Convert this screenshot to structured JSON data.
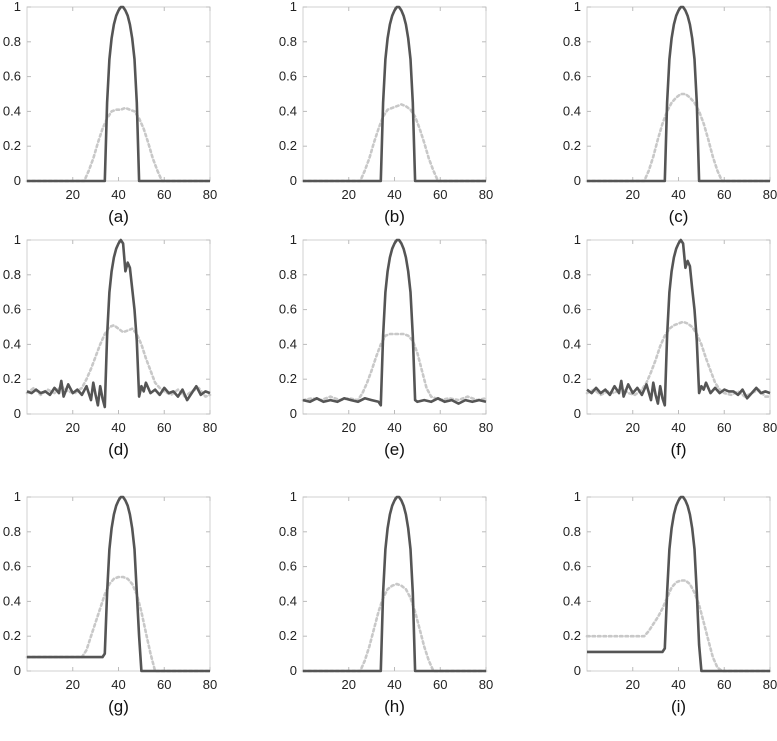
{
  "figure": {
    "xlim": [
      0,
      80
    ],
    "ylim": [
      0,
      1
    ],
    "xticks": [
      20,
      40,
      60,
      80
    ],
    "yticks": [
      0,
      0.2,
      0.4,
      0.6,
      0.8,
      1
    ],
    "colors": {
      "solid": "#555555",
      "dotted": "#c8c8c8",
      "axis": "#d2d2d2"
    }
  },
  "chart_data": [
    {
      "type": "line",
      "caption": "(a)",
      "xlim": [
        0,
        80
      ],
      "ylim": [
        0,
        1
      ],
      "series": [
        {
          "style": "solid",
          "x": [
            0,
            34,
            35,
            36,
            37,
            38,
            39,
            40,
            41,
            42,
            43,
            44,
            45,
            46,
            47,
            48,
            49,
            80
          ],
          "y": [
            0,
            0,
            0.45,
            0.7,
            0.82,
            0.9,
            0.95,
            0.98,
            1,
            1,
            0.98,
            0.95,
            0.9,
            0.82,
            0.7,
            0.45,
            0,
            0
          ]
        },
        {
          "style": "dotted",
          "x": [
            0,
            25,
            27,
            29,
            31,
            33,
            35,
            37,
            39,
            41,
            43,
            45,
            47,
            49,
            51,
            53,
            55,
            57,
            59,
            80
          ],
          "y": [
            0,
            0,
            0.06,
            0.13,
            0.22,
            0.3,
            0.36,
            0.4,
            0.41,
            0.41,
            0.42,
            0.41,
            0.4,
            0.36,
            0.3,
            0.22,
            0.13,
            0.06,
            0,
            0
          ]
        }
      ]
    },
    {
      "type": "line",
      "caption": "(b)",
      "xlim": [
        0,
        80
      ],
      "ylim": [
        0,
        1
      ],
      "series": [
        {
          "style": "solid",
          "x": [
            0,
            34,
            35,
            36,
            37,
            38,
            39,
            40,
            41,
            42,
            43,
            44,
            45,
            46,
            47,
            48,
            49,
            80
          ],
          "y": [
            0,
            0,
            0.45,
            0.7,
            0.82,
            0.9,
            0.95,
            0.98,
            1,
            1,
            0.98,
            0.95,
            0.9,
            0.82,
            0.7,
            0.45,
            0,
            0
          ]
        },
        {
          "style": "dotted",
          "x": [
            0,
            25,
            27,
            29,
            31,
            33,
            35,
            37,
            39,
            41,
            43,
            45,
            47,
            49,
            51,
            53,
            55,
            57,
            59,
            80
          ],
          "y": [
            0,
            0,
            0.06,
            0.13,
            0.22,
            0.3,
            0.37,
            0.41,
            0.42,
            0.43,
            0.44,
            0.43,
            0.41,
            0.37,
            0.3,
            0.22,
            0.13,
            0.06,
            0,
            0
          ]
        }
      ]
    },
    {
      "type": "line",
      "caption": "(c)",
      "xlim": [
        0,
        80
      ],
      "ylim": [
        0,
        1
      ],
      "series": [
        {
          "style": "solid",
          "x": [
            0,
            34,
            35,
            36,
            37,
            38,
            39,
            40,
            41,
            42,
            43,
            44,
            45,
            46,
            47,
            48,
            49,
            80
          ],
          "y": [
            0,
            0,
            0.45,
            0.7,
            0.82,
            0.9,
            0.95,
            0.98,
            1,
            1,
            0.98,
            0.95,
            0.9,
            0.82,
            0.7,
            0.45,
            0,
            0
          ]
        },
        {
          "style": "dotted",
          "x": [
            0,
            25,
            27,
            29,
            31,
            33,
            35,
            37,
            39,
            41,
            43,
            45,
            47,
            49,
            51,
            53,
            55,
            57,
            59,
            80
          ],
          "y": [
            0,
            0,
            0.06,
            0.14,
            0.24,
            0.33,
            0.4,
            0.45,
            0.48,
            0.5,
            0.5,
            0.48,
            0.45,
            0.4,
            0.33,
            0.24,
            0.14,
            0.06,
            0,
            0
          ]
        }
      ]
    },
    {
      "type": "line",
      "caption": "(d)",
      "xlim": [
        0,
        80
      ],
      "ylim": [
        0,
        1
      ],
      "series": [
        {
          "style": "solid",
          "x": [
            0,
            2,
            4,
            6,
            8,
            10,
            12,
            14,
            15,
            16,
            18,
            20,
            22,
            24,
            26,
            28,
            29,
            30,
            31,
            32,
            33,
            34,
            35,
            36,
            37,
            38,
            39,
            40,
            41,
            42,
            43,
            44,
            45,
            46,
            47,
            48,
            49,
            50,
            51,
            52,
            54,
            56,
            58,
            60,
            62,
            64,
            66,
            68,
            70,
            72,
            74,
            76,
            78,
            80
          ],
          "y": [
            0.13,
            0.12,
            0.14,
            0.12,
            0.13,
            0.11,
            0.15,
            0.12,
            0.19,
            0.1,
            0.17,
            0.12,
            0.14,
            0.11,
            0.16,
            0.08,
            0.18,
            0.11,
            0.05,
            0.16,
            0.09,
            0.04,
            0.45,
            0.7,
            0.82,
            0.9,
            0.95,
            0.98,
            1,
            0.98,
            0.82,
            0.87,
            0.84,
            0.72,
            0.6,
            0.42,
            0.1,
            0.16,
            0.13,
            0.18,
            0.12,
            0.14,
            0.11,
            0.15,
            0.12,
            0.13,
            0.1,
            0.14,
            0.08,
            0.12,
            0.16,
            0.11,
            0.13,
            0.12
          ]
        },
        {
          "style": "dotted",
          "x": [
            0,
            3,
            6,
            9,
            12,
            15,
            18,
            21,
            24,
            26,
            28,
            30,
            32,
            34,
            36,
            38,
            40,
            42,
            44,
            46,
            48,
            50,
            52,
            54,
            56,
            58,
            60,
            63,
            66,
            69,
            72,
            75,
            78,
            80
          ],
          "y": [
            0.12,
            0.15,
            0.11,
            0.14,
            0.12,
            0.16,
            0.13,
            0.12,
            0.15,
            0.2,
            0.26,
            0.33,
            0.4,
            0.46,
            0.5,
            0.51,
            0.49,
            0.47,
            0.48,
            0.49,
            0.46,
            0.4,
            0.32,
            0.25,
            0.18,
            0.15,
            0.13,
            0.11,
            0.14,
            0.1,
            0.13,
            0.15,
            0.1,
            0.11
          ]
        }
      ]
    },
    {
      "type": "line",
      "caption": "(e)",
      "xlim": [
        0,
        80
      ],
      "ylim": [
        0,
        1
      ],
      "series": [
        {
          "style": "solid",
          "x": [
            0,
            3,
            6,
            9,
            12,
            15,
            18,
            21,
            24,
            27,
            30,
            33,
            34,
            35,
            36,
            37,
            38,
            39,
            40,
            41,
            42,
            43,
            44,
            45,
            46,
            47,
            48,
            49,
            50,
            53,
            56,
            59,
            62,
            65,
            68,
            71,
            74,
            77,
            80
          ],
          "y": [
            0.08,
            0.07,
            0.09,
            0.07,
            0.08,
            0.07,
            0.09,
            0.08,
            0.07,
            0.09,
            0.08,
            0.07,
            0.05,
            0.45,
            0.7,
            0.82,
            0.9,
            0.95,
            0.98,
            1,
            1,
            0.98,
            0.95,
            0.9,
            0.82,
            0.7,
            0.45,
            0.08,
            0.07,
            0.08,
            0.07,
            0.09,
            0.07,
            0.08,
            0.06,
            0.08,
            0.07,
            0.08,
            0.07
          ]
        },
        {
          "style": "dotted",
          "x": [
            0,
            4,
            8,
            12,
            16,
            20,
            24,
            26,
            28,
            30,
            32,
            34,
            36,
            38,
            40,
            42,
            44,
            46,
            48,
            50,
            52,
            54,
            56,
            60,
            64,
            68,
            72,
            76,
            80
          ],
          "y": [
            0.08,
            0.09,
            0.08,
            0.1,
            0.08,
            0.09,
            0.08,
            0.12,
            0.18,
            0.25,
            0.33,
            0.4,
            0.45,
            0.46,
            0.46,
            0.46,
            0.46,
            0.45,
            0.42,
            0.35,
            0.25,
            0.15,
            0.1,
            0.08,
            0.09,
            0.08,
            0.1,
            0.08,
            0.09
          ]
        }
      ]
    },
    {
      "type": "line",
      "caption": "(f)",
      "xlim": [
        0,
        80
      ],
      "ylim": [
        0,
        1
      ],
      "series": [
        {
          "style": "solid",
          "x": [
            0,
            2,
            4,
            6,
            8,
            10,
            12,
            14,
            15,
            16,
            18,
            20,
            22,
            24,
            26,
            28,
            29,
            30,
            31,
            32,
            33,
            34,
            35,
            36,
            37,
            38,
            39,
            40,
            41,
            42,
            43,
            44,
            45,
            46,
            47,
            48,
            49,
            50,
            51,
            52,
            54,
            56,
            58,
            60,
            62,
            64,
            66,
            68,
            70,
            72,
            74,
            76,
            78,
            80
          ],
          "y": [
            0.14,
            0.12,
            0.15,
            0.12,
            0.14,
            0.11,
            0.16,
            0.12,
            0.19,
            0.1,
            0.17,
            0.12,
            0.15,
            0.11,
            0.17,
            0.08,
            0.18,
            0.11,
            0.06,
            0.16,
            0.09,
            0.05,
            0.45,
            0.7,
            0.82,
            0.9,
            0.95,
            0.98,
            1,
            0.98,
            0.84,
            0.88,
            0.85,
            0.72,
            0.6,
            0.42,
            0.12,
            0.16,
            0.14,
            0.18,
            0.12,
            0.15,
            0.12,
            0.14,
            0.13,
            0.13,
            0.11,
            0.14,
            0.09,
            0.12,
            0.15,
            0.12,
            0.13,
            0.12
          ]
        },
        {
          "style": "dotted",
          "x": [
            0,
            3,
            6,
            9,
            12,
            15,
            18,
            21,
            24,
            26,
            28,
            30,
            32,
            34,
            36,
            38,
            40,
            42,
            44,
            46,
            48,
            50,
            52,
            54,
            56,
            58,
            60,
            63,
            66,
            69,
            72,
            75,
            78,
            80
          ],
          "y": [
            0.12,
            0.14,
            0.11,
            0.13,
            0.12,
            0.15,
            0.12,
            0.11,
            0.14,
            0.18,
            0.24,
            0.31,
            0.39,
            0.45,
            0.49,
            0.51,
            0.52,
            0.53,
            0.52,
            0.5,
            0.46,
            0.4,
            0.32,
            0.25,
            0.18,
            0.14,
            0.12,
            0.11,
            0.13,
            0.1,
            0.12,
            0.14,
            0.1,
            0.1
          ]
        }
      ]
    },
    {
      "type": "line",
      "caption": "(g)",
      "xlim": [
        0,
        80
      ],
      "ylim": [
        0,
        1
      ],
      "series": [
        {
          "style": "solid",
          "x": [
            0,
            33,
            34,
            35,
            36,
            37,
            38,
            39,
            40,
            41,
            42,
            43,
            44,
            45,
            46,
            47,
            48,
            49,
            50,
            80
          ],
          "y": [
            0.08,
            0.08,
            0.1,
            0.45,
            0.7,
            0.82,
            0.9,
            0.95,
            0.98,
            1,
            1,
            0.98,
            0.95,
            0.9,
            0.82,
            0.7,
            0.45,
            0.2,
            0,
            0
          ]
        },
        {
          "style": "dotted",
          "x": [
            0,
            24,
            26,
            28,
            30,
            32,
            34,
            36,
            38,
            40,
            42,
            44,
            46,
            48,
            50,
            52,
            54,
            56,
            80
          ],
          "y": [
            0.08,
            0.08,
            0.12,
            0.2,
            0.28,
            0.36,
            0.44,
            0.5,
            0.53,
            0.54,
            0.54,
            0.53,
            0.5,
            0.44,
            0.34,
            0.22,
            0.1,
            0,
            0
          ]
        }
      ]
    },
    {
      "type": "line",
      "caption": "(h)",
      "xlim": [
        0,
        80
      ],
      "ylim": [
        0,
        1
      ],
      "series": [
        {
          "style": "solid",
          "x": [
            0,
            34,
            35,
            36,
            37,
            38,
            39,
            40,
            41,
            42,
            43,
            44,
            45,
            46,
            47,
            48,
            49,
            80
          ],
          "y": [
            0,
            0,
            0.45,
            0.7,
            0.82,
            0.9,
            0.95,
            0.98,
            1,
            1,
            0.98,
            0.95,
            0.9,
            0.82,
            0.7,
            0.45,
            0,
            0
          ]
        },
        {
          "style": "dotted",
          "x": [
            0,
            25,
            27,
            29,
            31,
            33,
            35,
            37,
            39,
            41,
            43,
            45,
            47,
            49,
            51,
            53,
            55,
            57,
            80
          ],
          "y": [
            0,
            0,
            0.06,
            0.14,
            0.24,
            0.34,
            0.42,
            0.47,
            0.49,
            0.5,
            0.49,
            0.47,
            0.42,
            0.34,
            0.24,
            0.14,
            0.06,
            0,
            0
          ]
        }
      ]
    },
    {
      "type": "line",
      "caption": "(i)",
      "xlim": [
        0,
        80
      ],
      "ylim": [
        0,
        1
      ],
      "series": [
        {
          "style": "solid",
          "x": [
            0,
            33,
            34,
            35,
            36,
            37,
            38,
            39,
            40,
            41,
            42,
            43,
            44,
            45,
            46,
            47,
            48,
            49,
            50,
            80
          ],
          "y": [
            0.11,
            0.11,
            0.13,
            0.45,
            0.7,
            0.82,
            0.9,
            0.95,
            0.98,
            1,
            1,
            0.98,
            0.95,
            0.9,
            0.82,
            0.7,
            0.45,
            0.15,
            0,
            0
          ]
        },
        {
          "style": "dotted",
          "x": [
            0,
            25,
            27,
            29,
            31,
            33,
            35,
            37,
            39,
            41,
            43,
            45,
            47,
            49,
            51,
            53,
            55,
            57,
            59,
            80
          ],
          "y": [
            0.2,
            0.2,
            0.23,
            0.27,
            0.31,
            0.36,
            0.42,
            0.48,
            0.51,
            0.52,
            0.52,
            0.5,
            0.45,
            0.38,
            0.28,
            0.18,
            0.08,
            0.02,
            0,
            0
          ]
        }
      ]
    }
  ]
}
